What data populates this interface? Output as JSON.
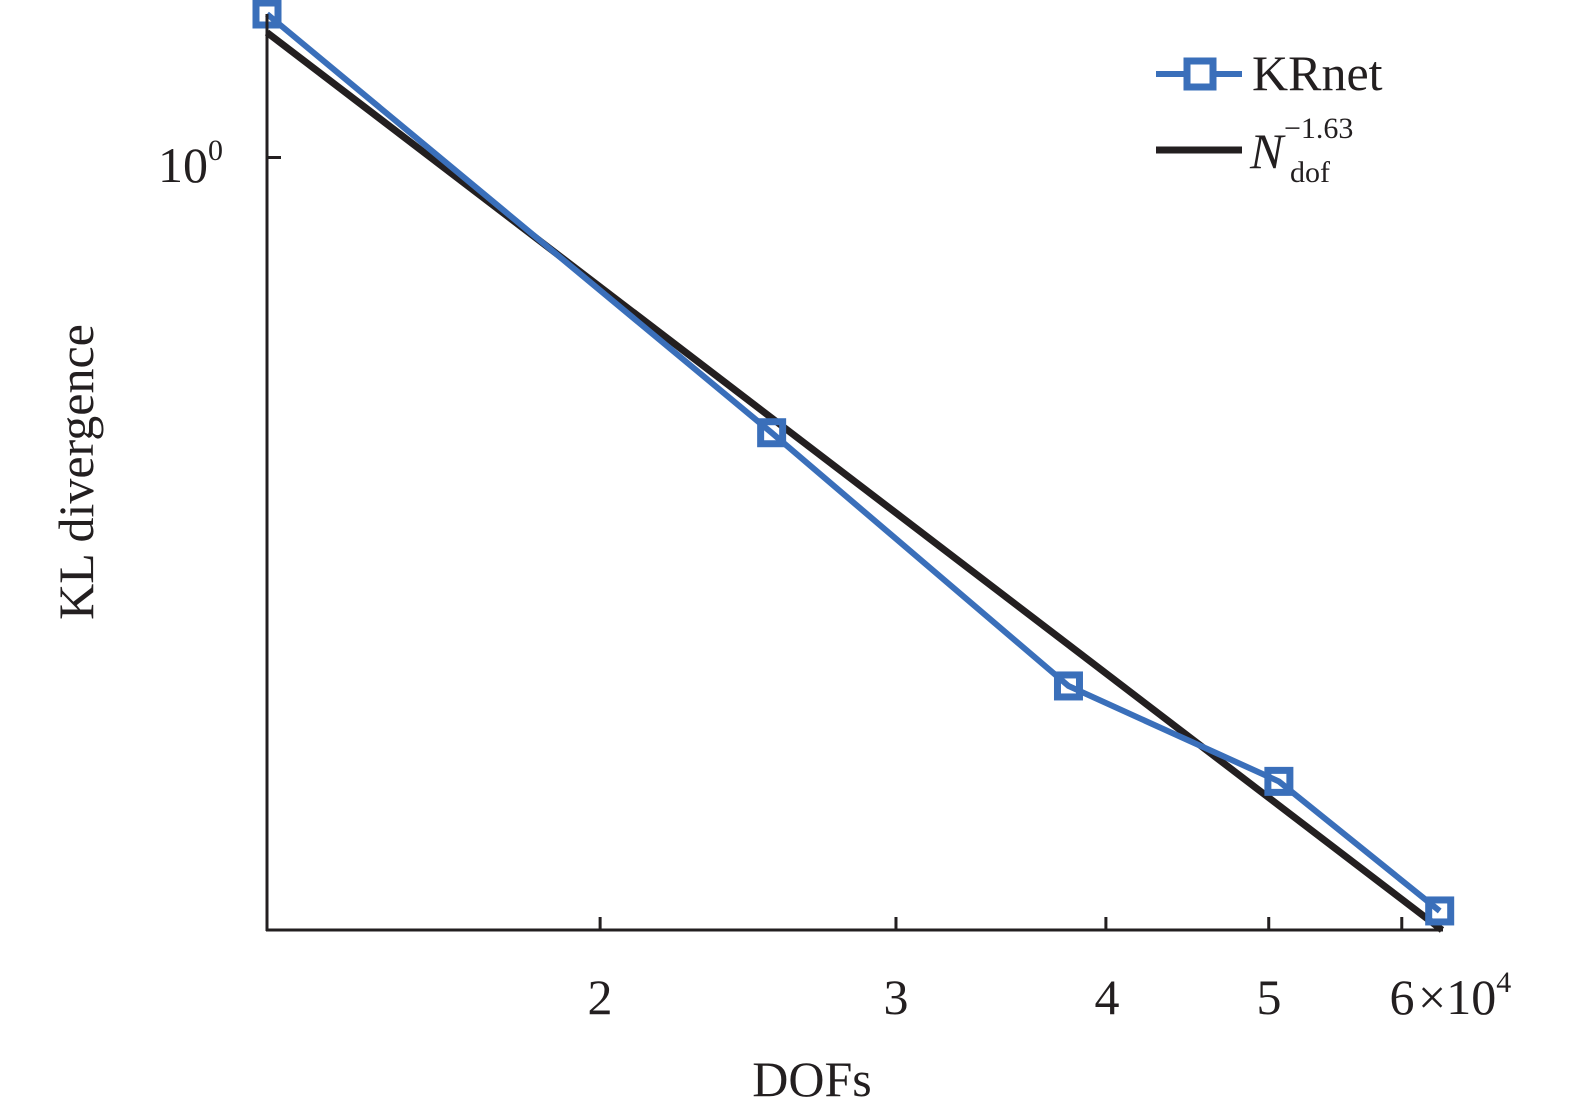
{
  "chart_data": {
    "type": "line",
    "title": "",
    "xlabel": "DOFs",
    "ylabel": "KL divergence",
    "xscale": "log",
    "yscale": "log",
    "xlim": [
      12670,
      63400
    ],
    "ylim": [
      0.105,
      1.52
    ],
    "x_ticks": [
      {
        "value": 20000,
        "label": "2"
      },
      {
        "value": 30000,
        "label": "3"
      },
      {
        "value": 40000,
        "label": "4"
      },
      {
        "value": 50000,
        "label": "5"
      },
      {
        "value": 60000,
        "label": "6"
      }
    ],
    "x_multiplier": "×10",
    "x_multiplier_exp": "4",
    "y_ticks": [
      {
        "value": 1,
        "label": "10",
        "exp": "0"
      }
    ],
    "grid": false,
    "legend_position": "top-right",
    "series": [
      {
        "name": "KRnet",
        "color": "#3a6fba",
        "marker": "square",
        "x": [
          12670,
          25300,
          38000,
          50700,
          63200
        ],
        "values": [
          1.52,
          0.448,
          0.214,
          0.162,
          0.111
        ]
      },
      {
        "name": "N_dof^-1.63",
        "label_base": "N",
        "label_sub": "dof",
        "label_sup": "−1.63",
        "color": "#231f20",
        "marker": "none",
        "x": [
          12670,
          63400
        ],
        "values": [
          1.44,
          0.105
        ]
      }
    ]
  },
  "axes": {
    "xlabel": "DOFs",
    "ylabel": "KL divergence",
    "x_tick_labels": [
      "2",
      "3",
      "4",
      "5",
      "6"
    ],
    "x_multiplier": "×10",
    "x_multiplier_exp": "4",
    "y_tick_base": "10",
    "y_tick_exp": "0"
  },
  "legend": {
    "krnet": "KRnet",
    "fit_base": "N",
    "fit_sup": "−1.63",
    "fit_sub": "dof"
  }
}
